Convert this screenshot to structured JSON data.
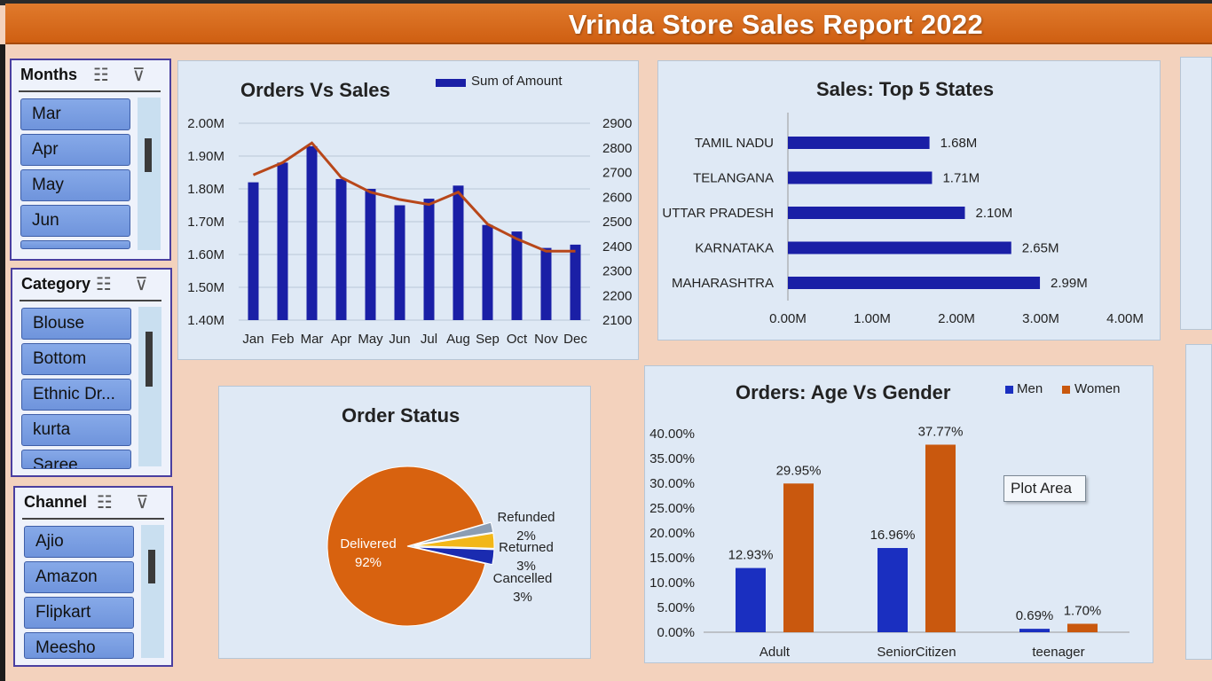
{
  "header": {
    "title": "Vrinda Store Sales Report 2022",
    "bg_color": "#d9691e"
  },
  "slicers": {
    "months": {
      "title": "Months",
      "items": [
        "Mar",
        "Apr",
        "May",
        "Jun"
      ]
    },
    "category": {
      "title": "Category",
      "items": [
        "Blouse",
        "Bottom",
        "Ethnic Dr...",
        "kurta",
        "Saree"
      ]
    },
    "channel": {
      "title": "Channel",
      "items": [
        "Ajio",
        "Amazon",
        "Flipkart",
        "Meesho"
      ]
    }
  },
  "chart_data": [
    {
      "type": "bar",
      "title": "Orders Vs Sales",
      "categories": [
        "Jan",
        "Feb",
        "Mar",
        "Apr",
        "May",
        "Jun",
        "Jul",
        "Aug",
        "Sep",
        "Oct",
        "Nov",
        "Dec"
      ],
      "series": [
        {
          "name": "Sum of Amount",
          "kind": "bar",
          "axis": "left",
          "color": "#1a1fa6",
          "values": [
            1.82,
            1.88,
            1.93,
            1.83,
            1.8,
            1.75,
            1.77,
            1.81,
            1.69,
            1.67,
            1.62,
            1.63
          ]
        },
        {
          "kind": "line",
          "axis": "right",
          "color": "#b8471a",
          "values": [
            2690,
            2740,
            2820,
            2680,
            2620,
            2590,
            2570,
            2620,
            2490,
            2430,
            2380,
            2380
          ]
        }
      ],
      "left_axis": {
        "ticks": [
          "2.00M",
          "1.90M",
          "1.80M",
          "1.70M",
          "1.60M",
          "1.50M",
          "1.40M"
        ],
        "ylim": [
          1.4,
          2.0
        ]
      },
      "right_axis": {
        "ticks": [
          "2900",
          "2800",
          "2700",
          "2600",
          "2500",
          "2400",
          "2300",
          "2200",
          "2100"
        ],
        "ylim": [
          2100,
          2900
        ]
      },
      "legend": "top-right"
    },
    {
      "type": "bar",
      "orientation": "horizontal",
      "title": "Sales: Top 5 States",
      "categories": [
        "TAMIL NADU",
        "TELANGANA",
        "UTTAR PRADESH",
        "KARNATAKA",
        "MAHARASHTRA"
      ],
      "values": [
        1.68,
        1.71,
        2.1,
        2.65,
        2.99
      ],
      "data_labels": [
        "1.68M",
        "1.71M",
        "2.10M",
        "2.65M",
        "2.99M"
      ],
      "x_ticks": [
        "0.00M",
        "1.00M",
        "2.00M",
        "3.00M",
        "4.00M"
      ],
      "xlim": [
        0,
        4
      ],
      "color": "#1a1fa6"
    },
    {
      "type": "pie",
      "title": "Order Status",
      "slices": [
        {
          "label": "Delivered",
          "pct_label": "92%",
          "value": 92,
          "color": "#d8620f"
        },
        {
          "label": "Refunded",
          "pct_label": "2%",
          "value": 2,
          "color": "#8b9db3"
        },
        {
          "label": "Returned",
          "pct_label": "3%",
          "value": 3,
          "color": "#f2b718"
        },
        {
          "label": "Cancelled",
          "pct_label": "3%",
          "value": 3,
          "color": "#1a2bb0"
        }
      ]
    },
    {
      "type": "bar",
      "title": "Orders: Age Vs Gender",
      "categories": [
        "Adult",
        "SeniorCitizen",
        "teenager"
      ],
      "series": [
        {
          "name": "Men",
          "color": "#1a2fc0",
          "values": [
            12.93,
            16.96,
            0.69
          ],
          "labels": [
            "12.93%",
            "16.96%",
            "0.69%"
          ]
        },
        {
          "name": "Women",
          "color": "#c9580e",
          "values": [
            29.95,
            37.77,
            1.7
          ],
          "labels": [
            "29.95%",
            "37.77%",
            "1.70%"
          ]
        }
      ],
      "y_ticks": [
        "40.00%",
        "35.00%",
        "30.00%",
        "25.00%",
        "20.00%",
        "15.00%",
        "10.00%",
        "5.00%",
        "0.00%"
      ],
      "ylim": [
        0,
        40
      ],
      "legend": "top-right"
    }
  ],
  "tooltip": {
    "text": "Plot Area"
  }
}
